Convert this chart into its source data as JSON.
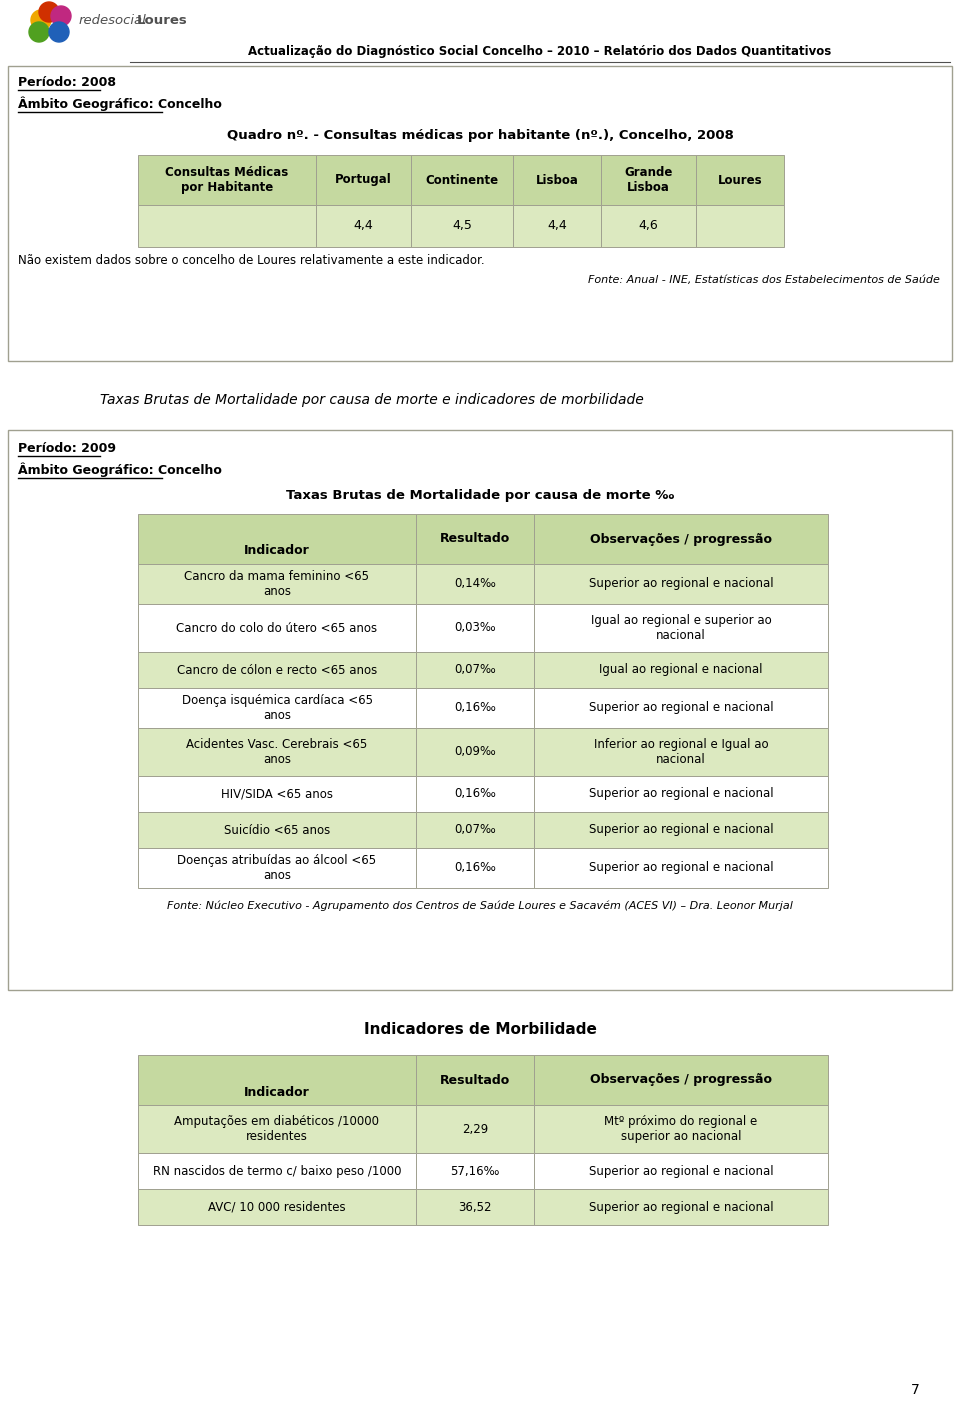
{
  "page_title": "Actualização do Diagnóstico Social Concelho – 2010 – Relatório dos Dados Quantitativos",
  "section1": {
    "periodo": "Período: 2008",
    "ambito": "Âmbito Geográfico: Concelho",
    "quadro_title": "Quadro nº. - Consultas médicas por habitante (nº.), Concelho, 2008",
    "table1_headers": [
      "Consultas Médicas\npor Habitante",
      "Portugal",
      "Continente",
      "Lisboa",
      "Grande\nLisboa",
      "Loures"
    ],
    "table1_data": [
      [
        "",
        "4,4",
        "4,5",
        "4,4",
        "4,6",
        ""
      ]
    ],
    "note": "Não existem dados sobre o concelho de Loures relativamente a este indicador.",
    "fonte1": "Fonte: Anual - INE, Estatísticas dos Estabelecimentos de Saúde"
  },
  "section_mid_title": "Taxas Brutas de Mortalidade por causa de morte e indicadores de morbilidade",
  "section2": {
    "periodo": "Período: 2009",
    "ambito": "Âmbito Geográfico: Concelho",
    "table2_title": "Taxas Brutas de Mortalidade por causa de morte ‰",
    "table2_headers": [
      "Indicador",
      "Resultado",
      "Observações / progressão"
    ],
    "table2_data": [
      [
        "Cancro da mama feminino <65\nanos",
        "0,14‰",
        "Superior ao regional e nacional"
      ],
      [
        "Cancro do colo do útero <65 anos",
        "0,03‰",
        "Igual ao regional e superior ao\nnacional"
      ],
      [
        "Cancro de cólon e recto <65 anos",
        "0,07‰",
        "Igual ao regional e nacional"
      ],
      [
        "Doença isquémica cardíaca <65\nanos",
        "0,16‰",
        "Superior ao regional e nacional"
      ],
      [
        "Acidentes Vasc. Cerebrais <65\nanos",
        "0,09‰",
        "Inferior ao regional e Igual ao\nnacional"
      ],
      [
        "HIV/SIDA <65 anos",
        "0,16‰",
        "Superior ao regional e nacional"
      ],
      [
        "Suicídio <65 anos",
        "0,07‰",
        "Superior ao regional e nacional"
      ],
      [
        "Doenças atribuídas ao álcool <65\nanos",
        "0,16‰",
        "Superior ao regional e nacional"
      ]
    ],
    "fonte2": "Fonte: Núcleo Executivo - Agrupamento dos Centros de Saúde Loures e Sacavém (ACES VI) – Dra. Leonor Murjal"
  },
  "section3": {
    "table3_title": "Indicadores de Morbilidade",
    "table3_headers": [
      "Indicador",
      "Resultado",
      "Observações / progressão"
    ],
    "table3_data": [
      [
        "Amputações em diabéticos /10000\nresidentes",
        "2,29",
        "Mtº próximo do regional e\nsuperior ao nacional"
      ],
      [
        "RN nascidos de termo c/ baixo peso /1000",
        "57,16‰",
        "Superior ao regional e nacional"
      ],
      [
        "AVC/ 10 000 residentes",
        "36,52",
        "Superior ao regional e nacional"
      ]
    ]
  },
  "page_number": "7",
  "header_color": "#c5d9a0",
  "cell_color_light": "#dce9c0",
  "bg_color": "#ffffff",
  "border_color": "#a0a090"
}
